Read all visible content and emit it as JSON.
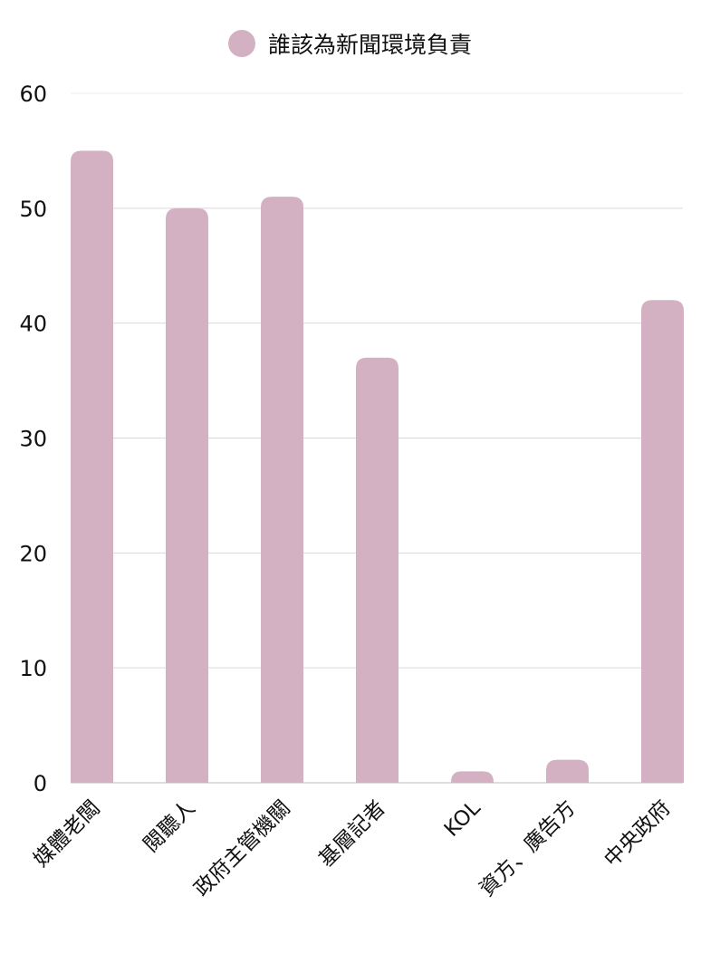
{
  "chart_data": {
    "type": "bar",
    "categories": [
      "媒體老闆",
      "閱聽人",
      "政府主管機關",
      "基層記者",
      "KOL",
      "資方、廣告方",
      "中央政府"
    ],
    "series": [
      {
        "name": "誰該為新聞環境負責",
        "values": [
          55,
          50,
          51,
          37,
          1,
          2,
          42
        ]
      }
    ],
    "ylim": [
      0,
      60
    ],
    "yticks": [
      0,
      10,
      20,
      30,
      40,
      50,
      60
    ],
    "grid": true,
    "legend": "top-center",
    "colors": {
      "bar": "#d4b1c2",
      "grid": "#d9d9d9"
    }
  }
}
